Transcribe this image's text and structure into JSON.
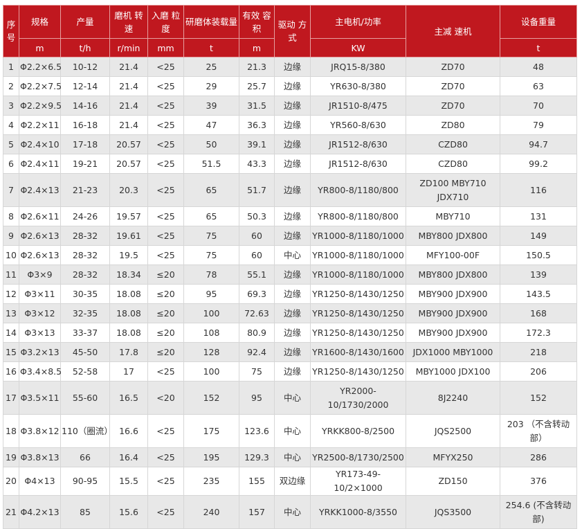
{
  "header": {
    "columns": [
      "序号",
      "规格",
      "产量",
      "磨机 转速",
      "入磨 粒度",
      "研磨体装载量",
      "有效 容积",
      "驱动 方式",
      "主电机/功率",
      "主减 速机",
      "设备重量"
    ],
    "units": [
      "m",
      "t/h",
      "r/min",
      "mm",
      "t",
      "m",
      "KW",
      "t"
    ],
    "header_color": "#c0181f",
    "stripe_color": "#e8e8e8"
  },
  "rows": [
    [
      "1",
      "Φ2.2×6.5",
      "10-12",
      "21.4",
      "<25",
      "25",
      "21.3",
      "边缘",
      "JRQ15-8/380",
      "ZD70",
      "48"
    ],
    [
      "2",
      "Φ2.2×7.5",
      "12-14",
      "21.4",
      "<25",
      "29",
      "25.7",
      "边缘",
      "YR630-8/380",
      "ZD70",
      "63"
    ],
    [
      "3",
      "Φ2.2×9.5",
      "14-16",
      "21.4",
      "<25",
      "39",
      "31.5",
      "边缘",
      "JR1510-8/475",
      "ZD70",
      "70"
    ],
    [
      "4",
      "Φ2.2×11",
      "16-18",
      "21.4",
      "<25",
      "47",
      "36.3",
      "边缘",
      "YR560-8/630",
      "ZD80",
      "79"
    ],
    [
      "5",
      "Φ2.4×10",
      "17-18",
      "20.57",
      "<25",
      "50",
      "39.1",
      "边缘",
      "JR1512-8/630",
      "CZD80",
      "94.7"
    ],
    [
      "6",
      "Φ2.4×11",
      "19-21",
      "20.57",
      "<25",
      "51.5",
      "43.3",
      "边缘",
      "JR1512-8/630",
      "CZD80",
      "99.2"
    ],
    [
      "7",
      "Φ2.4×13",
      "21-23",
      "20.3",
      "<25",
      "65",
      "51.7",
      "边缘",
      "YR800-8/1180/800",
      "ZD100 MBY710 JDX710",
      "116"
    ],
    [
      "8",
      "Φ2.6×11",
      "24-26",
      "19.57",
      "<25",
      "65",
      "50.3",
      "边缘",
      "YR800-8/1180/800",
      "MBY710",
      "131"
    ],
    [
      "9",
      "Φ2.6×13",
      "28-32",
      "19.61",
      "<25",
      "75",
      "60",
      "边缘",
      "YR1000-8/1180/1000",
      "MBY800 JDX800",
      "149"
    ],
    [
      "10",
      "Φ2.6×13",
      "28-32",
      "19.5",
      "<25",
      "75",
      "60",
      "中心",
      "YR1000-8/1180/1000",
      "MFY100-00F",
      "150.5"
    ],
    [
      "11",
      "Φ3×9",
      "28-32",
      "18.34",
      "≤20",
      "78",
      "55.1",
      "边缘",
      "YR1000-8/1180/1000",
      "MBY800 JDX800",
      "139"
    ],
    [
      "12",
      "Φ3×11",
      "30-35",
      "18.08",
      "≤20",
      "95",
      "69.3",
      "边缘",
      "YR1250-8/1430/1250",
      "MBY900 JDX900",
      "143.5"
    ],
    [
      "13",
      "Φ3×12",
      "32-35",
      "18.08",
      "≤20",
      "100",
      "72.63",
      "边缘",
      "YR1250-8/1430/1250",
      "MBY900 JDX900",
      "168"
    ],
    [
      "14",
      "Φ3×13",
      "33-37",
      "18.08",
      "≤20",
      "108",
      "80.9",
      "边缘",
      "YR1250-8/1430/1250",
      "MBY900 JDX900",
      "172.3"
    ],
    [
      "15",
      "Φ3.2×13",
      "45-50",
      "17.8",
      "≤20",
      "128",
      "92.4",
      "边缘",
      "YR1600-8/1430/1600",
      "JDX1000 MBY1000",
      "218"
    ],
    [
      "16",
      "Φ3.4×8.5",
      "52-58",
      "17",
      "<25",
      "100",
      "75",
      "边缘",
      "YR1250-8/1430/1250",
      "MBY1000 JDX100",
      "206"
    ],
    [
      "17",
      "Φ3.5×11",
      "55-60",
      "16.5",
      "<20",
      "152",
      "95",
      "中心",
      "YR2000-10/1730/2000",
      "8J2240",
      "152"
    ],
    [
      "18",
      "Φ3.8×12",
      "110（圈流）",
      "16.6",
      "<25",
      "175",
      "123.6",
      "中心",
      "YRKK800-8/2500",
      "JQS2500",
      "203 （不含转动部）"
    ],
    [
      "19",
      "Φ3.8×13",
      "66",
      "16.4",
      "<25",
      "195",
      "129.3",
      "中心",
      "YR2500-8/1730/2500",
      "MFYX250",
      "286"
    ],
    [
      "20",
      "Φ4×13",
      "90-95",
      "15.5",
      "<25",
      "235",
      "155",
      "双边缘",
      "YR173-49-10/2×1000",
      "ZD150",
      "376"
    ],
    [
      "21",
      "Φ4.2×13",
      "85",
      "15.6",
      "<25",
      "240",
      "157",
      "中心",
      "YRKK1000-8/3550",
      "JQS3500",
      "254.6 (不含转动部)"
    ]
  ]
}
